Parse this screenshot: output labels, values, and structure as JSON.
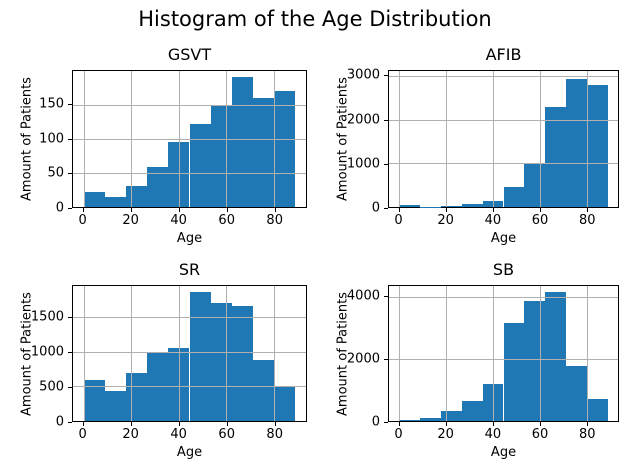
{
  "figure": {
    "title": "Histogram of the Age Distribution"
  },
  "style": {
    "bar_color": "#1f77b4",
    "grid_color": "#b0b0b0",
    "spine_color": "#000000"
  },
  "chart_data": [
    {
      "type": "bar",
      "subtype": "histogram",
      "title": "GSVT",
      "xlabel": "Age",
      "ylabel": "Amount of Patients",
      "bin_start": 0,
      "bin_end": 89,
      "bin_width": 8.9,
      "values": [
        22,
        15,
        31,
        59,
        95,
        122,
        150,
        190,
        160,
        170
      ],
      "xticks": [
        0,
        20,
        40,
        60,
        80
      ],
      "yticks": [
        0,
        50,
        100,
        150
      ],
      "xlim": [
        -4.45,
        93.45
      ],
      "ylim": [
        0,
        199.5
      ],
      "grid": true
    },
    {
      "type": "bar",
      "subtype": "histogram",
      "title": "AFIB",
      "xlabel": "Age",
      "ylabel": "Amount of Patients",
      "bin_start": 0,
      "bin_end": 89,
      "bin_width": 8.9,
      "values": [
        40,
        10,
        30,
        75,
        145,
        470,
        1020,
        2300,
        2930,
        2790
      ],
      "xticks": [
        0,
        20,
        40,
        60,
        80
      ],
      "yticks": [
        0,
        1000,
        2000,
        3000
      ],
      "xlim": [
        -4.45,
        93.45
      ],
      "ylim": [
        0,
        3120
      ],
      "grid": true
    },
    {
      "type": "bar",
      "subtype": "histogram",
      "title": "SR",
      "xlabel": "Age",
      "ylabel": "Amount of Patients",
      "bin_start": 0,
      "bin_end": 89,
      "bin_width": 8.9,
      "values": [
        600,
        440,
        700,
        980,
        1050,
        1860,
        1710,
        1670,
        880,
        490
      ],
      "xticks": [
        0,
        20,
        40,
        60,
        80
      ],
      "yticks": [
        0,
        500,
        1000,
        1500
      ],
      "xlim": [
        -4.45,
        93.45
      ],
      "ylim": [
        0,
        1953
      ],
      "grid": true
    },
    {
      "type": "bar",
      "subtype": "histogram",
      "title": "SB",
      "xlabel": "Age",
      "ylabel": "Amount of Patients",
      "bin_start": 0,
      "bin_end": 89,
      "bin_width": 8.9,
      "values": [
        30,
        90,
        330,
        660,
        1200,
        3180,
        3870,
        4150,
        1780,
        710
      ],
      "xticks": [
        0,
        20,
        40,
        60,
        80
      ],
      "yticks": [
        0,
        2000,
        4000
      ],
      "xlim": [
        -4.45,
        93.45
      ],
      "ylim": [
        0,
        4358
      ],
      "grid": true
    }
  ]
}
